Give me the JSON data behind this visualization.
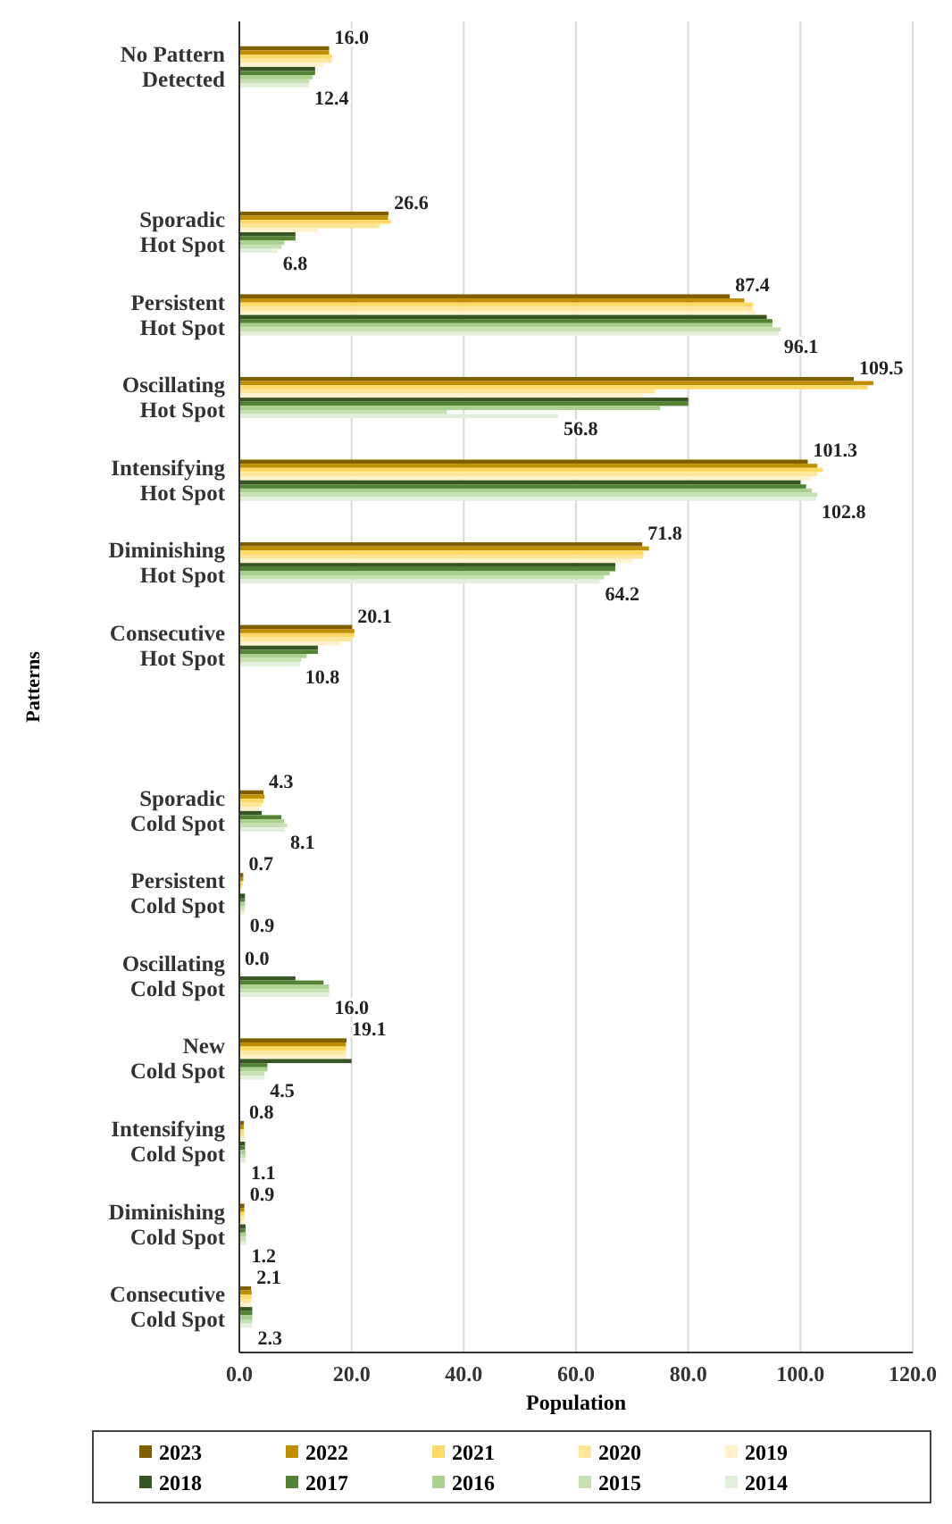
{
  "chart_data": {
    "type": "bar",
    "orientation": "horizontal",
    "xlabel": "Population",
    "ylabel": "Patterns",
    "categories": [
      "No Pattern\nDetected",
      null,
      "Sporadic\nHot Spot",
      "Persistent\nHot Spot",
      "Oscillating\nHot Spot",
      "Intensifying\nHot Spot",
      "Diminishing\nHot Spot",
      "Consecutive\nHot Spot",
      null,
      "Sporadic\nCold Spot",
      "Persistent\nCold Spot",
      "Oscillating\nCold Spot",
      "New\nCold Spot",
      "Intensifying\nCold Spot",
      "Diminishing\nCold Spot",
      "Consecutive\nCold Spot"
    ],
    "xlim": [
      0,
      120
    ],
    "xticks": [
      {
        "value": 0,
        "label": "0.0"
      },
      {
        "value": 20,
        "label": "20.0"
      },
      {
        "value": 40,
        "label": "40.0"
      },
      {
        "value": 60,
        "label": "60.0"
      },
      {
        "value": 80,
        "label": "80.0"
      },
      {
        "value": 100,
        "label": "100.0"
      },
      {
        "value": 120,
        "label": "120.0"
      }
    ],
    "grid": "x",
    "legend": "bottom",
    "series": [
      {
        "name": "2023",
        "color": "#7f5f00",
        "values": [
          16.0,
          null,
          26.6,
          87.4,
          109.5,
          101.3,
          71.8,
          20.1,
          null,
          4.3,
          0.7,
          0.0,
          19.1,
          0.8,
          0.9,
          2.1
        ],
        "value_labels": [
          "16.0",
          null,
          "26.6",
          "87.4",
          "109.5",
          "101.3",
          "71.8",
          "20.1",
          null,
          "4.3",
          "0.7",
          "0.0",
          "19.1",
          "0.8",
          "0.9",
          "2.1"
        ]
      },
      {
        "name": "2022",
        "color": "#bf8f00",
        "values": [
          16,
          null,
          26.5,
          90,
          113,
          103,
          73,
          20.5,
          null,
          4.5,
          0.7,
          0,
          19,
          0.8,
          0.9,
          2.2
        ]
      },
      {
        "name": "2021",
        "color": "#ffd966",
        "values": [
          16.5,
          null,
          27,
          91.5,
          112,
          104,
          72,
          20.5,
          null,
          4.3,
          0.6,
          0,
          19,
          0.8,
          0.9,
          2.2
        ]
      },
      {
        "name": "2020",
        "color": "#ffe699",
        "values": [
          16.5,
          null,
          25,
          91.5,
          74,
          103,
          72,
          20,
          null,
          4,
          0.5,
          0,
          19,
          0.8,
          0.9,
          2.1
        ]
      },
      {
        "name": "2019",
        "color": "#fff2cc",
        "values": [
          15,
          null,
          14,
          92,
          72,
          102,
          70,
          18,
          null,
          3.5,
          null,
          0,
          19,
          0.8,
          0.9,
          2.0
        ]
      },
      {
        "name": "2018",
        "color": "#375623",
        "values": [
          13.5,
          null,
          10,
          94,
          80,
          100,
          67,
          14,
          null,
          4,
          1,
          10,
          20,
          1.0,
          1.1,
          2.3
        ]
      },
      {
        "name": "2017",
        "color": "#548235",
        "values": [
          13.5,
          null,
          10,
          95,
          80,
          101,
          67,
          14,
          null,
          7.5,
          1,
          15,
          5,
          1.0,
          1.1,
          2.3
        ]
      },
      {
        "name": "2016",
        "color": "#a9d08e",
        "values": [
          13,
          null,
          8,
          95,
          75,
          102,
          66,
          12,
          null,
          8,
          1,
          16,
          5,
          1.1,
          1.2,
          2.3
        ]
      },
      {
        "name": "2015",
        "color": "#c6e0b4",
        "values": [
          12.5,
          null,
          7.5,
          96.5,
          37,
          103,
          65,
          11,
          null,
          8.5,
          0.9,
          16,
          4.5,
          1.1,
          1.2,
          2.3
        ]
      },
      {
        "name": "2014",
        "color": "#e2efda",
        "values": [
          12.4,
          null,
          6.8,
          96.1,
          56.8,
          102.8,
          64.2,
          10.8,
          null,
          8.1,
          0.9,
          16.0,
          4.5,
          1.1,
          1.2,
          2.3
        ],
        "value_labels": [
          "12.4",
          null,
          "6.8",
          "96.1",
          "56.8",
          "102.8",
          "64.2",
          "10.8",
          null,
          "8.1",
          "0.9",
          "16.0",
          "4.5",
          "1.1",
          "1.2",
          "2.3"
        ]
      }
    ]
  }
}
